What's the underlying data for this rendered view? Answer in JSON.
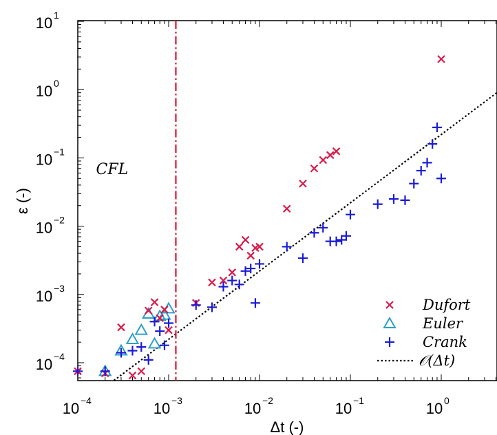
{
  "chart_data": {
    "type": "scatter",
    "xscale": "log",
    "yscale": "log",
    "xlim": [
      0.0001,
      5
    ],
    "ylim": [
      5.5e-05,
      10
    ],
    "xlabel": "Δt (-)",
    "ylabel": "ε (-)",
    "x_ticks": [
      {
        "base": "10",
        "exp": "−4",
        "value": 0.0001
      },
      {
        "base": "10",
        "exp": "−3",
        "value": 0.001
      },
      {
        "base": "10",
        "exp": "−2",
        "value": 0.01
      },
      {
        "base": "10",
        "exp": "−1",
        "value": 0.1
      },
      {
        "base": "10",
        "exp": "0",
        "value": 1
      }
    ],
    "y_ticks": [
      {
        "base": "10",
        "exp": "−4",
        "value": 0.0001
      },
      {
        "base": "10",
        "exp": "−3",
        "value": 0.001
      },
      {
        "base": "10",
        "exp": "−2",
        "value": 0.01
      },
      {
        "base": "10",
        "exp": "−1",
        "value": 0.1
      },
      {
        "base": "10",
        "exp": "0",
        "value": 1
      },
      {
        "base": "10",
        "exp": "1",
        "value": 10
      }
    ],
    "annotation": {
      "text": "CFL",
      "x": 0.00025,
      "y": 0.07
    },
    "vline": {
      "x": 0.0012,
      "color": "#e0142e",
      "style": "dash-dot"
    },
    "reference_line": {
      "name": "𝒪(Δt)",
      "x": [
        0.00025,
        5
      ],
      "y": [
        5.5e-05,
        1.1
      ],
      "color": "#000000",
      "style": "dotted"
    },
    "legend_position": "bottom-right",
    "series": [
      {
        "name": "Dufort",
        "marker": "x",
        "color": "#d91a4a",
        "x": [
          0.0001,
          0.0002,
          0.0003,
          0.0004,
          0.0005,
          0.0006,
          0.0007,
          0.0008,
          0.0009,
          0.001,
          0.002,
          0.003,
          0.004,
          0.005,
          0.006,
          0.007,
          0.008,
          0.009,
          0.01,
          0.02,
          0.03,
          0.04,
          0.05,
          0.06,
          0.07,
          1.0
        ],
        "y": [
          7.5e-05,
          7e-05,
          0.00033,
          6.5e-05,
          7.5e-05,
          0.00058,
          0.00077,
          0.00045,
          0.0006,
          0.0003,
          0.00075,
          0.0015,
          0.0016,
          0.0021,
          0.005,
          0.0063,
          0.0037,
          0.0048,
          0.005,
          0.018,
          0.042,
          0.07,
          0.093,
          0.11,
          0.125,
          2.8
        ]
      },
      {
        "name": "Euler",
        "marker": "triangle",
        "color": "#2ca0c8",
        "x": [
          0.0002,
          0.0003,
          0.0004,
          0.0005,
          0.0006,
          0.0007,
          0.0008,
          0.0009,
          0.001
        ],
        "y": [
          7.5e-05,
          0.00015,
          0.00022,
          0.0003,
          0.00052,
          0.00019,
          0.00048,
          0.0005,
          0.00062
        ]
      },
      {
        "name": "Crank",
        "marker": "plus",
        "color": "#1c1cd4",
        "x": [
          0.0001,
          0.0002,
          0.0003,
          0.0004,
          0.0005,
          0.0006,
          0.0007,
          0.0008,
          0.0009,
          0.001,
          0.002,
          0.003,
          0.004,
          0.005,
          0.006,
          0.007,
          0.008,
          0.009,
          0.01,
          0.02,
          0.03,
          0.04,
          0.05,
          0.06,
          0.07,
          0.08,
          0.09,
          0.1,
          0.2,
          0.3,
          0.4,
          0.5,
          0.6,
          0.7,
          0.8,
          0.9,
          1.0
        ],
        "y": [
          7.5e-05,
          7.5e-05,
          0.00014,
          0.00015,
          0.00017,
          0.00011,
          0.0004,
          0.00029,
          0.00018,
          0.00038,
          0.0007,
          0.00065,
          0.0013,
          0.0016,
          0.0014,
          0.0022,
          0.0024,
          0.00075,
          0.0028,
          0.005,
          0.0034,
          0.008,
          0.0095,
          0.006,
          0.006,
          0.0063,
          0.0072,
          0.0148,
          0.021,
          0.025,
          0.024,
          0.042,
          0.065,
          0.085,
          0.16,
          0.28,
          0.05
        ]
      }
    ]
  }
}
